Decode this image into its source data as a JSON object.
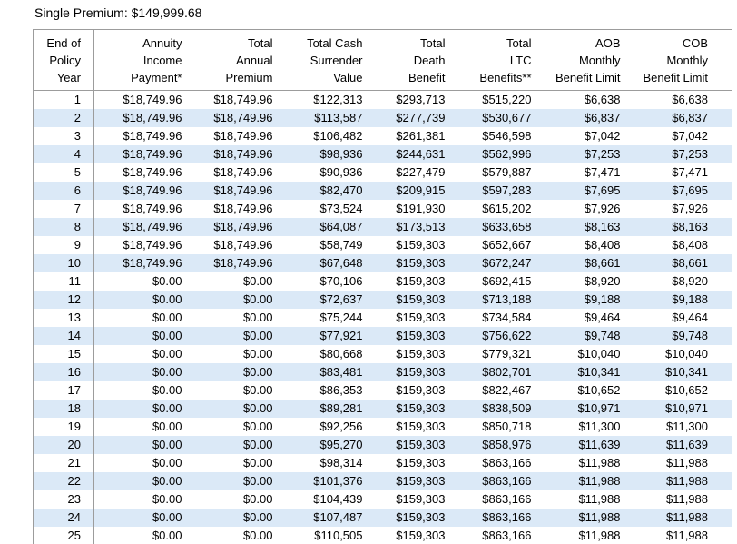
{
  "title": "Single Premium: $149,999.68",
  "colors": {
    "stripe": "#dbe9f7",
    "border": "#9c9c9c",
    "text": "#000000",
    "background": "#ffffff"
  },
  "table": {
    "columns": [
      {
        "id": "end-of-policy-year",
        "lines": [
          "End of",
          "Policy",
          "Year"
        ]
      },
      {
        "id": "annuity-income-payment",
        "lines": [
          "Annuity",
          "Income",
          "Payment*"
        ]
      },
      {
        "id": "total-annual-premium",
        "lines": [
          "Total",
          "Annual",
          "Premium"
        ]
      },
      {
        "id": "total-cash-surrender-value",
        "lines": [
          "Total Cash",
          "Surrender",
          "Value"
        ]
      },
      {
        "id": "total-death-benefit",
        "lines": [
          "Total",
          "Death",
          "Benefit"
        ]
      },
      {
        "id": "total-ltc-benefits",
        "lines": [
          "Total",
          "LTC",
          "Benefits**"
        ]
      },
      {
        "id": "aob-monthly-benefit-limit",
        "lines": [
          "AOB",
          "Monthly",
          "Benefit Limit"
        ]
      },
      {
        "id": "cob-monthly-benefit-limit",
        "lines": [
          "COB",
          "Monthly",
          "Benefit Limit"
        ]
      }
    ],
    "rows": [
      [
        "1",
        "$18,749.96",
        "$18,749.96",
        "$122,313",
        "$293,713",
        "$515,220",
        "$6,638",
        "$6,638"
      ],
      [
        "2",
        "$18,749.96",
        "$18,749.96",
        "$113,587",
        "$277,739",
        "$530,677",
        "$6,837",
        "$6,837"
      ],
      [
        "3",
        "$18,749.96",
        "$18,749.96",
        "$106,482",
        "$261,381",
        "$546,598",
        "$7,042",
        "$7,042"
      ],
      [
        "4",
        "$18,749.96",
        "$18,749.96",
        "$98,936",
        "$244,631",
        "$562,996",
        "$7,253",
        "$7,253"
      ],
      [
        "5",
        "$18,749.96",
        "$18,749.96",
        "$90,936",
        "$227,479",
        "$579,887",
        "$7,471",
        "$7,471"
      ],
      [
        "6",
        "$18,749.96",
        "$18,749.96",
        "$82,470",
        "$209,915",
        "$597,283",
        "$7,695",
        "$7,695"
      ],
      [
        "7",
        "$18,749.96",
        "$18,749.96",
        "$73,524",
        "$191,930",
        "$615,202",
        "$7,926",
        "$7,926"
      ],
      [
        "8",
        "$18,749.96",
        "$18,749.96",
        "$64,087",
        "$173,513",
        "$633,658",
        "$8,163",
        "$8,163"
      ],
      [
        "9",
        "$18,749.96",
        "$18,749.96",
        "$58,749",
        "$159,303",
        "$652,667",
        "$8,408",
        "$8,408"
      ],
      [
        "10",
        "$18,749.96",
        "$18,749.96",
        "$67,648",
        "$159,303",
        "$672,247",
        "$8,661",
        "$8,661"
      ],
      [
        "11",
        "$0.00",
        "$0.00",
        "$70,106",
        "$159,303",
        "$692,415",
        "$8,920",
        "$8,920"
      ],
      [
        "12",
        "$0.00",
        "$0.00",
        "$72,637",
        "$159,303",
        "$713,188",
        "$9,188",
        "$9,188"
      ],
      [
        "13",
        "$0.00",
        "$0.00",
        "$75,244",
        "$159,303",
        "$734,584",
        "$9,464",
        "$9,464"
      ],
      [
        "14",
        "$0.00",
        "$0.00",
        "$77,921",
        "$159,303",
        "$756,622",
        "$9,748",
        "$9,748"
      ],
      [
        "15",
        "$0.00",
        "$0.00",
        "$80,668",
        "$159,303",
        "$779,321",
        "$10,040",
        "$10,040"
      ],
      [
        "16",
        "$0.00",
        "$0.00",
        "$83,481",
        "$159,303",
        "$802,701",
        "$10,341",
        "$10,341"
      ],
      [
        "17",
        "$0.00",
        "$0.00",
        "$86,353",
        "$159,303",
        "$822,467",
        "$10,652",
        "$10,652"
      ],
      [
        "18",
        "$0.00",
        "$0.00",
        "$89,281",
        "$159,303",
        "$838,509",
        "$10,971",
        "$10,971"
      ],
      [
        "19",
        "$0.00",
        "$0.00",
        "$92,256",
        "$159,303",
        "$850,718",
        "$11,300",
        "$11,300"
      ],
      [
        "20",
        "$0.00",
        "$0.00",
        "$95,270",
        "$159,303",
        "$858,976",
        "$11,639",
        "$11,639"
      ],
      [
        "21",
        "$0.00",
        "$0.00",
        "$98,314",
        "$159,303",
        "$863,166",
        "$11,988",
        "$11,988"
      ],
      [
        "22",
        "$0.00",
        "$0.00",
        "$101,376",
        "$159,303",
        "$863,166",
        "$11,988",
        "$11,988"
      ],
      [
        "23",
        "$0.00",
        "$0.00",
        "$104,439",
        "$159,303",
        "$863,166",
        "$11,988",
        "$11,988"
      ],
      [
        "24",
        "$0.00",
        "$0.00",
        "$107,487",
        "$159,303",
        "$863,166",
        "$11,988",
        "$11,988"
      ],
      [
        "25",
        "$0.00",
        "$0.00",
        "$110,505",
        "$159,303",
        "$863,166",
        "$11,988",
        "$11,988"
      ]
    ]
  }
}
